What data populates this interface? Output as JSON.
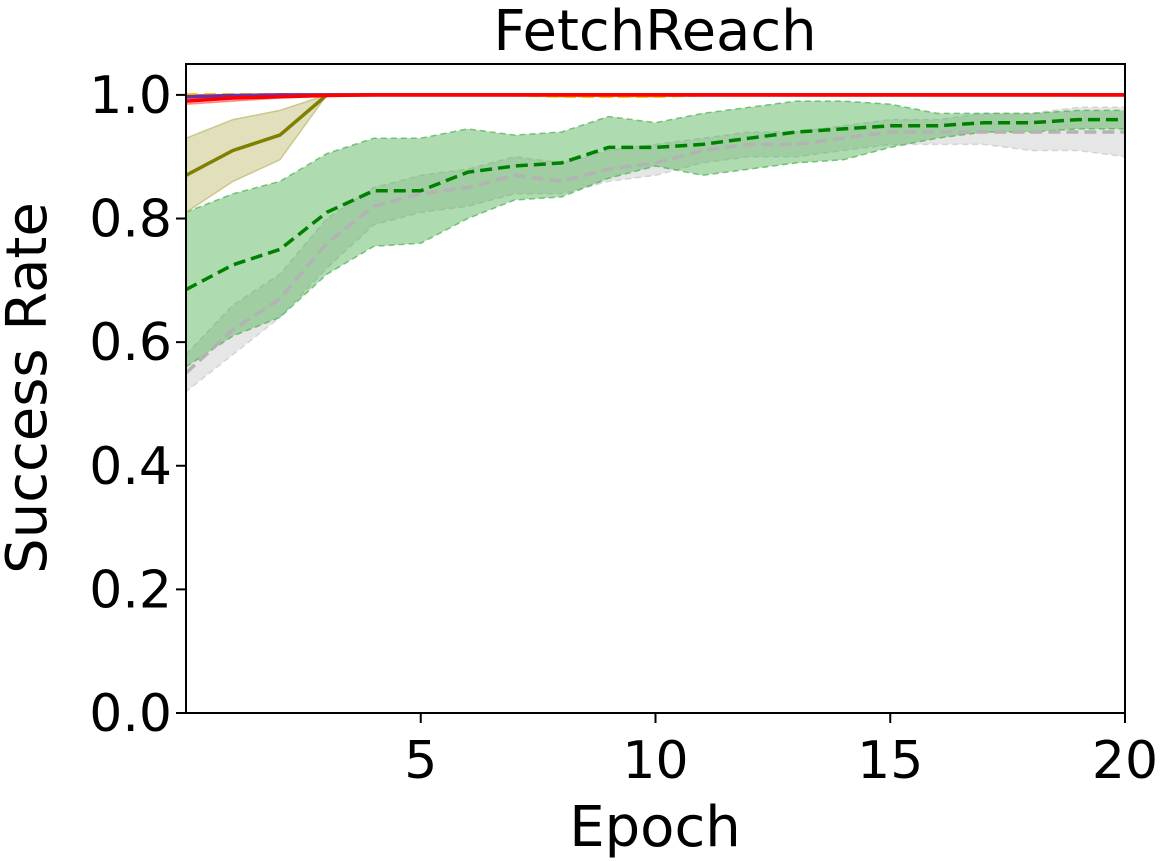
{
  "chart_data": {
    "type": "line",
    "title": "FetchReach",
    "xlabel": "Epoch",
    "ylabel": "Success Rate",
    "xlim": [
      0,
      20
    ],
    "ylim": [
      0,
      1.05
    ],
    "xticks": [
      5,
      10,
      15,
      20
    ],
    "xtick_labels": [
      "5",
      "10",
      "15",
      "20"
    ],
    "yticks": [
      0.0,
      0.2,
      0.4,
      0.6,
      0.8,
      1.0
    ],
    "ytick_labels": [
      "0.0",
      "0.2",
      "0.4",
      "0.6",
      "0.8",
      "1.0"
    ],
    "grid": false,
    "series": [
      {
        "color": "#b3b3b3",
        "linestyle": "dashed",
        "band_color": "#c8c8c8",
        "x": [
          0,
          1,
          2,
          3,
          4,
          5,
          6,
          7,
          8,
          9,
          10,
          11,
          12,
          13,
          14,
          15,
          16,
          17,
          18,
          19,
          20
        ],
        "mean": [
          0.55,
          0.62,
          0.67,
          0.76,
          0.82,
          0.84,
          0.85,
          0.87,
          0.86,
          0.88,
          0.89,
          0.91,
          0.92,
          0.92,
          0.93,
          0.94,
          0.94,
          0.94,
          0.94,
          0.94,
          0.94
        ],
        "lower": [
          0.52,
          0.58,
          0.64,
          0.72,
          0.79,
          0.81,
          0.82,
          0.84,
          0.84,
          0.86,
          0.87,
          0.89,
          0.9,
          0.9,
          0.91,
          0.92,
          0.92,
          0.92,
          0.91,
          0.91,
          0.9
        ],
        "upper": [
          0.58,
          0.66,
          0.71,
          0.8,
          0.85,
          0.87,
          0.88,
          0.9,
          0.89,
          0.91,
          0.92,
          0.93,
          0.94,
          0.94,
          0.95,
          0.96,
          0.96,
          0.97,
          0.97,
          0.98,
          0.98
        ]
      },
      {
        "color": "#008000",
        "linestyle": "dashed",
        "band_color": "#4caf50",
        "x": [
          0,
          1,
          2,
          3,
          4,
          5,
          6,
          7,
          8,
          9,
          10,
          11,
          12,
          13,
          14,
          15,
          16,
          17,
          18,
          19,
          20
        ],
        "mean": [
          0.685,
          0.725,
          0.75,
          0.81,
          0.845,
          0.845,
          0.875,
          0.885,
          0.89,
          0.915,
          0.915,
          0.92,
          0.93,
          0.94,
          0.945,
          0.95,
          0.95,
          0.955,
          0.955,
          0.96,
          0.96
        ],
        "lower": [
          0.56,
          0.61,
          0.64,
          0.71,
          0.755,
          0.76,
          0.8,
          0.83,
          0.835,
          0.865,
          0.885,
          0.87,
          0.88,
          0.89,
          0.895,
          0.915,
          0.93,
          0.94,
          0.94,
          0.945,
          0.945
        ],
        "upper": [
          0.81,
          0.84,
          0.86,
          0.905,
          0.93,
          0.93,
          0.945,
          0.935,
          0.94,
          0.965,
          0.955,
          0.97,
          0.98,
          0.99,
          0.99,
          0.985,
          0.97,
          0.97,
          0.97,
          0.975,
          0.975
        ]
      },
      {
        "color": "#808000",
        "linestyle": "solid",
        "band_color": "#bdb76b",
        "x": [
          0,
          1,
          2,
          3,
          4,
          5,
          6,
          7,
          8,
          9,
          10,
          11,
          12,
          13,
          14,
          15,
          16,
          17,
          18,
          19,
          20
        ],
        "mean": [
          0.87,
          0.91,
          0.935,
          1.0,
          1.0,
          1.0,
          1.0,
          1.0,
          1.0,
          1.0,
          1.0,
          1.0,
          1.0,
          1.0,
          1.0,
          1.0,
          1.0,
          1.0,
          1.0,
          1.0,
          1.0
        ],
        "lower": [
          0.81,
          0.86,
          0.895,
          1.0,
          1.0,
          1.0,
          1.0,
          1.0,
          1.0,
          1.0,
          1.0,
          1.0,
          1.0,
          1.0,
          1.0,
          1.0,
          1.0,
          1.0,
          1.0,
          1.0,
          1.0
        ],
        "upper": [
          0.93,
          0.96,
          0.975,
          1.0,
          1.0,
          1.0,
          1.0,
          1.0,
          1.0,
          1.0,
          1.0,
          1.0,
          1.0,
          1.0,
          1.0,
          1.0,
          1.0,
          1.0,
          1.0,
          1.0,
          1.0
        ]
      },
      {
        "color": "#ffbf00",
        "linestyle": "dashed",
        "band_color": "#ffd966",
        "x": [
          0,
          1,
          2,
          3,
          4,
          5,
          6,
          7,
          8,
          9,
          10,
          11,
          12,
          13,
          14,
          15,
          16,
          17,
          18,
          19,
          20
        ],
        "mean": [
          1.0,
          1.0,
          1.0,
          1.0,
          1.0,
          1.0,
          1.0,
          1.0,
          0.998,
          0.998,
          0.998,
          1.0,
          1.0,
          1.0,
          1.0,
          1.0,
          1.0,
          1.0,
          1.0,
          1.0,
          1.0
        ],
        "lower": [
          1.0,
          1.0,
          1.0,
          1.0,
          1.0,
          1.0,
          1.0,
          1.0,
          0.996,
          0.996,
          0.996,
          1.0,
          1.0,
          1.0,
          1.0,
          1.0,
          1.0,
          1.0,
          1.0,
          1.0,
          1.0
        ],
        "upper": [
          1.0,
          1.0,
          1.0,
          1.0,
          1.0,
          1.0,
          1.0,
          1.0,
          1.0,
          1.0,
          1.0,
          1.0,
          1.0,
          1.0,
          1.0,
          1.0,
          1.0,
          1.0,
          1.0,
          1.0,
          1.0
        ]
      },
      {
        "color": "#7030a0",
        "linestyle": "solid",
        "band_color": "#9b59b6",
        "x": [
          0,
          1,
          2,
          3,
          4,
          5,
          6,
          7,
          8,
          9,
          10,
          11,
          12,
          13,
          14,
          15,
          16,
          17,
          18,
          19,
          20
        ],
        "mean": [
          0.997,
          0.999,
          1.0,
          1.0,
          1.0,
          1.0,
          1.0,
          1.0,
          1.0,
          1.0,
          1.0,
          1.0,
          1.0,
          1.0,
          1.0,
          1.0,
          1.0,
          1.0,
          1.0,
          1.0,
          1.0
        ],
        "lower": [
          0.994,
          0.998,
          1.0,
          1.0,
          1.0,
          1.0,
          1.0,
          1.0,
          1.0,
          1.0,
          1.0,
          1.0,
          1.0,
          1.0,
          1.0,
          1.0,
          1.0,
          1.0,
          1.0,
          1.0,
          1.0
        ],
        "upper": [
          1.0,
          1.0,
          1.0,
          1.0,
          1.0,
          1.0,
          1.0,
          1.0,
          1.0,
          1.0,
          1.0,
          1.0,
          1.0,
          1.0,
          1.0,
          1.0,
          1.0,
          1.0,
          1.0,
          1.0,
          1.0
        ]
      },
      {
        "color": "#ff0000",
        "linestyle": "solid",
        "band_color": "#ff6666",
        "x": [
          0,
          1,
          2,
          3,
          4,
          5,
          6,
          7,
          8,
          9,
          10,
          11,
          12,
          13,
          14,
          15,
          16,
          17,
          18,
          19,
          20
        ],
        "mean": [
          0.99,
          0.995,
          0.997,
          0.999,
          1.0,
          1.0,
          1.0,
          1.0,
          1.0,
          1.0,
          1.0,
          1.0,
          1.0,
          1.0,
          1.0,
          1.0,
          1.0,
          1.0,
          1.0,
          1.0,
          1.0
        ],
        "lower": [
          0.985,
          0.99,
          0.995,
          0.998,
          1.0,
          1.0,
          1.0,
          1.0,
          1.0,
          1.0,
          1.0,
          1.0,
          1.0,
          1.0,
          1.0,
          1.0,
          1.0,
          1.0,
          1.0,
          1.0,
          1.0
        ],
        "upper": [
          0.995,
          0.999,
          1.0,
          1.0,
          1.0,
          1.0,
          1.0,
          1.0,
          1.0,
          1.0,
          1.0,
          1.0,
          1.0,
          1.0,
          1.0,
          1.0,
          1.0,
          1.0,
          1.0,
          1.0,
          1.0
        ]
      }
    ]
  }
}
